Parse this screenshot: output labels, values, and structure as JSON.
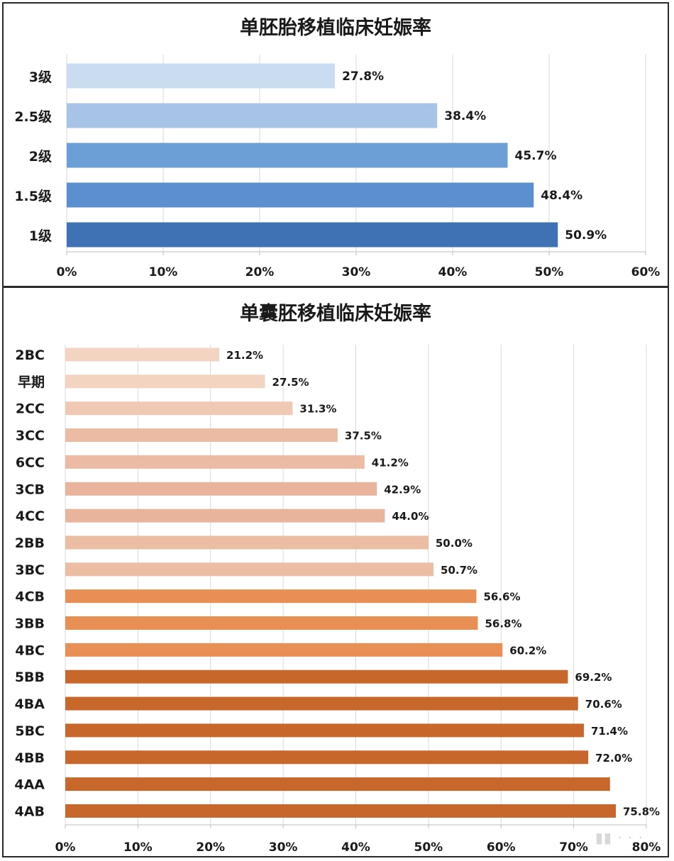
{
  "chart_data": [
    {
      "type": "bar",
      "orientation": "horizontal",
      "title": "单胚胎移植临床妊娠率",
      "categories": [
        "3级",
        "2.5级",
        "2级",
        "1.5级",
        "1级"
      ],
      "values": [
        27.8,
        38.4,
        45.7,
        48.4,
        50.9
      ],
      "value_labels": [
        "27.8%",
        "38.4%",
        "45.7%",
        "48.4%",
        "50.9%"
      ],
      "bar_colors": [
        "#c9dcf0",
        "#a7c4e6",
        "#6b9fd6",
        "#5b8fcf",
        "#3e72b5"
      ],
      "xlim": [
        0,
        60
      ],
      "xticks": [
        "0%",
        "10%",
        "20%",
        "30%",
        "40%",
        "50%",
        "60%"
      ],
      "grid": true,
      "legend": "none"
    },
    {
      "type": "bar",
      "orientation": "horizontal",
      "title": "单囊胚移植临床妊娠率",
      "categories": [
        "2BC",
        "早期",
        "2CC",
        "3CC",
        "6CC",
        "3CB",
        "4CC",
        "2BB",
        "3BC",
        "4CB",
        "3BB",
        "4BC",
        "5BB",
        "4BA",
        "5BC",
        "4BB",
        "4AA",
        "4AB"
      ],
      "values": [
        21.2,
        27.5,
        31.3,
        37.5,
        41.2,
        42.9,
        44.0,
        50.0,
        50.7,
        56.6,
        56.8,
        60.2,
        69.2,
        70.6,
        71.4,
        72.0,
        75.0,
        75.8
      ],
      "value_labels": [
        "21.2%",
        "27.5%",
        "31.3%",
        "37.5%",
        "41.2%",
        "42.9%",
        "44.0%",
        "50.0%",
        "50.7%",
        "56.6%",
        "56.8%",
        "60.2%",
        "69.2%",
        "70.6%",
        "71.4%",
        "72.0%",
        "",
        "75.8%"
      ],
      "bar_colors": [
        "#f3d3c2",
        "#f3d3c2",
        "#f0c9b4",
        "#ecbba3",
        "#ecbba3",
        "#e9b49c",
        "#e9b49c",
        "#ebbda2",
        "#ebbda2",
        "#e88f55",
        "#e88f55",
        "#e88f55",
        "#c8672b",
        "#c8672b",
        "#c8672b",
        "#c8672b",
        "#c8672b",
        "#c8672b"
      ],
      "xlim": [
        0,
        80
      ],
      "xticks": [
        "0%",
        "10%",
        "20%",
        "30%",
        "40%",
        "50%",
        "60%",
        "70%",
        "80%"
      ],
      "grid": true,
      "legend": "none"
    }
  ]
}
